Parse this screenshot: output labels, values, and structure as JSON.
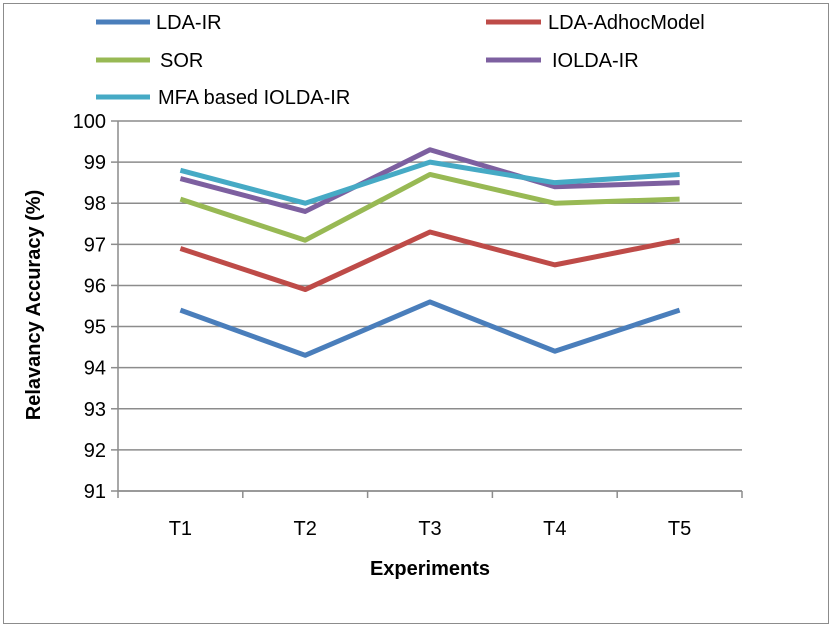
{
  "chart_data": {
    "type": "line",
    "title": "",
    "xlabel": "Experiments",
    "ylabel": "Relavancy  Accuracy (%)",
    "categories": [
      "T1",
      "T2",
      "T3",
      "T4",
      "T5"
    ],
    "ylim": [
      91,
      100
    ],
    "yticks": [
      91,
      92,
      93,
      94,
      95,
      96,
      97,
      98,
      99,
      100
    ],
    "grid": true,
    "legend_position": "top",
    "series": [
      {
        "name": "LDA-IR",
        "color": "#4a7ebb",
        "values": [
          95.4,
          94.3,
          95.6,
          94.4,
          95.4
        ]
      },
      {
        "name": "LDA-AdhocModel",
        "color": "#be4b48",
        "values": [
          96.9,
          95.9,
          97.3,
          96.5,
          97.1
        ]
      },
      {
        "name": "SOR",
        "color": "#98b954",
        "values": [
          98.1,
          97.1,
          98.7,
          98.0,
          98.1
        ]
      },
      {
        "name": "IOLDA-IR",
        "color": "#7d60a0",
        "values": [
          98.6,
          97.8,
          99.3,
          98.4,
          98.5
        ]
      },
      {
        "name": "MFA based IOLDA-IR",
        "color": "#46aac5",
        "values": [
          98.8,
          98.0,
          99.0,
          98.5,
          98.7
        ]
      }
    ]
  }
}
